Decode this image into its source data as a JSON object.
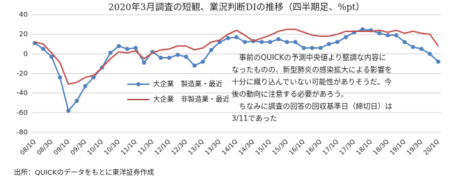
{
  "chart_data": {
    "type": "line",
    "title": "2020年3月調査の短観、業況判断DIの推移（四半期足、%pt）",
    "categories": [
      "08/1Q",
      null,
      "08/3Q",
      null,
      "09/1Q",
      null,
      "09/3Q",
      null,
      "10/1Q",
      null,
      "10/3Q",
      null,
      "11/1Q",
      null,
      "11/3Q",
      null,
      "12/1Q",
      null,
      "12/3Q",
      null,
      "13/1Q",
      null,
      "13/3Q",
      null,
      "14/1Q",
      null,
      "14/3Q",
      null,
      "15/1Q",
      null,
      "15/3Q",
      null,
      "16/1Q",
      null,
      "16/3Q",
      null,
      "17/1Q",
      null,
      "17/3Q",
      null,
      "18/1Q",
      null,
      "18/3Q",
      null,
      "19/1Q",
      null,
      "19/3Q",
      null,
      "20/1Q"
    ],
    "series": [
      {
        "name": "大企業　製造業・最近",
        "color": "#4f81bd",
        "markers": true,
        "values": [
          11,
          5,
          -3,
          -24,
          -58,
          -48,
          -33,
          -24,
          -14,
          1,
          8,
          5,
          6,
          -9,
          2,
          -4,
          -4,
          -1,
          -3,
          -12,
          -8,
          4,
          12,
          16,
          17,
          12,
          13,
          12,
          12,
          15,
          12,
          12,
          6,
          6,
          6,
          10,
          12,
          17,
          22,
          25,
          24,
          21,
          19,
          19,
          12,
          7,
          5,
          0,
          -8
        ]
      },
      {
        "name": "大企業　非製造業・最近",
        "color": "#c0504d",
        "markers": false,
        "values": [
          12,
          10,
          1,
          -9,
          -31,
          -29,
          -24,
          -22,
          -14,
          -5,
          2,
          1,
          3,
          -5,
          1,
          4,
          5,
          8,
          8,
          4,
          6,
          12,
          14,
          20,
          24,
          19,
          13,
          16,
          19,
          23,
          25,
          25,
          22,
          19,
          18,
          18,
          20,
          23,
          23,
          23,
          23,
          24,
          22,
          24,
          21,
          23,
          21,
          20,
          8
        ]
      }
    ],
    "ylim": [
      -80,
      40
    ],
    "yticks": [
      -80,
      -60,
      -40,
      -20,
      0,
      20,
      40
    ],
    "grid": true,
    "annotation": [
      "　事前のQUICKの予測中央値より堅調な内容に",
      "なったものの、新型肺炎の感染拡大による影響を",
      "十分に織り込んでいない可能性がありそうだ。今",
      "後の動向に注意する必要があろう。",
      "　ちなみに調査の回答の回収基準日（締切日）は",
      "3/11であった"
    ],
    "source": "出所：QUICKのデータをもとに東洋証券作成"
  }
}
